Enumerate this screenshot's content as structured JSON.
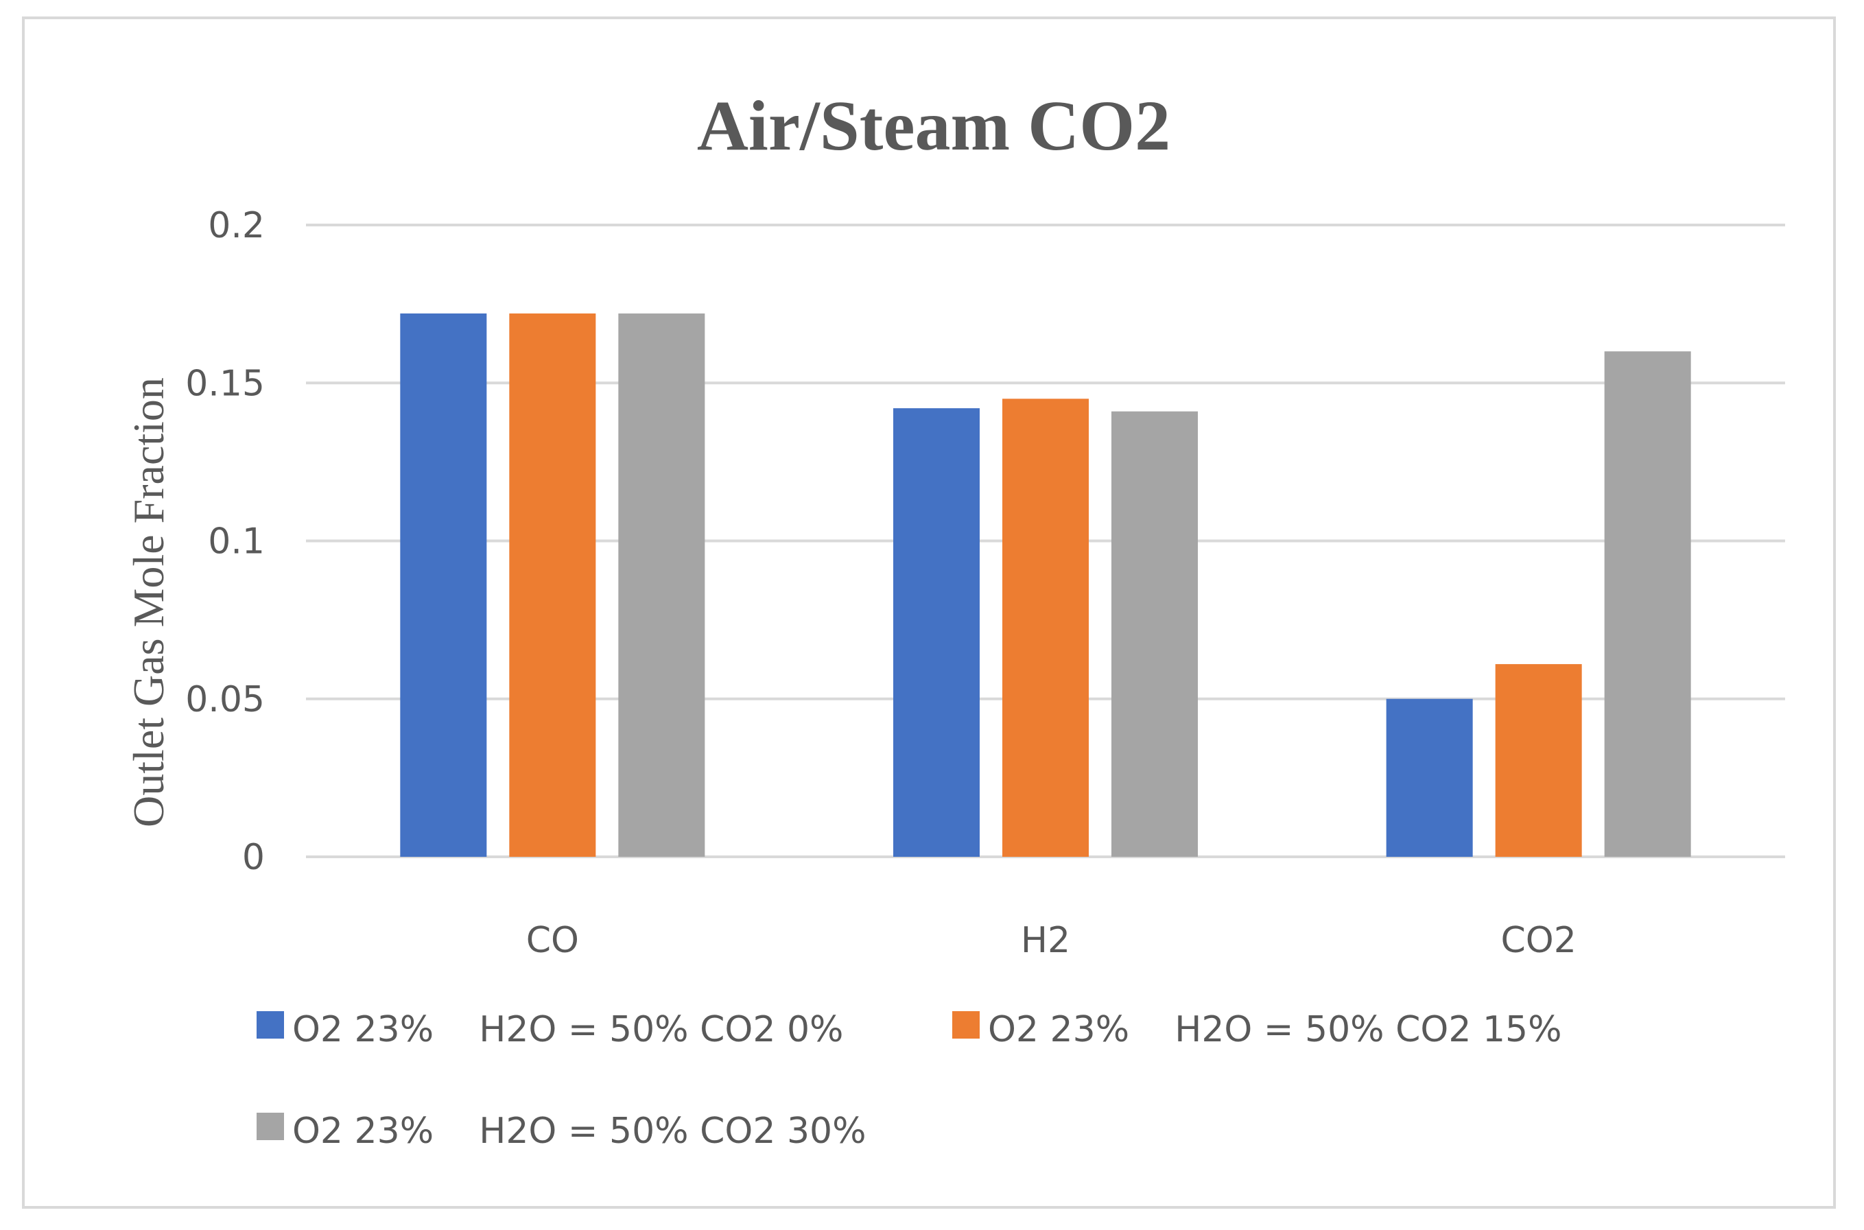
{
  "chart_data": {
    "type": "bar",
    "title": "Air/Steam CO2",
    "xlabel": "",
    "ylabel": "Outlet Gas Mole Fraction",
    "ylim": [
      0,
      0.2
    ],
    "yticks": [
      0,
      0.05,
      0.1,
      0.15,
      0.2
    ],
    "ytick_labels": [
      "0",
      "0.05",
      "0.1",
      "0.15",
      "0.2"
    ],
    "grid": true,
    "legend_position": "bottom",
    "categories": [
      "CO",
      "H2",
      "CO2"
    ],
    "series": [
      {
        "name": "O2 23%    H2O = 50% CO2 0%",
        "color": "#4472c4",
        "values": [
          0.172,
          0.142,
          0.05
        ]
      },
      {
        "name": "O2 23%    H2O = 50% CO2 15%",
        "color": "#ed7d31",
        "values": [
          0.172,
          0.145,
          0.061
        ]
      },
      {
        "name": "O2 23%    H2O = 50% CO2 30%",
        "color": "#a5a5a5",
        "values": [
          0.172,
          0.141,
          0.16
        ]
      }
    ]
  }
}
